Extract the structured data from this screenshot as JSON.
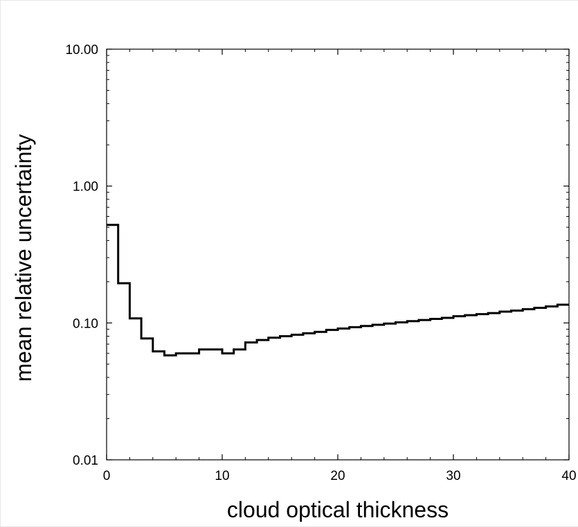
{
  "chart_data": {
    "type": "line",
    "step": true,
    "x_scale": "linear",
    "y_scale": "log",
    "xlabel": "cloud optical thickness",
    "ylabel": "mean relative uncertainty",
    "xlim": [
      0,
      40
    ],
    "ylim": [
      0.01,
      10
    ],
    "x_ticks": [
      0,
      10,
      20,
      30,
      40
    ],
    "x_tick_labels": [
      "0",
      "10",
      "20",
      "30",
      "40"
    ],
    "y_ticks": [
      0.01,
      0.1,
      1,
      10
    ],
    "y_tick_labels": [
      "0.01",
      "0.10",
      "1.00",
      "10.00"
    ],
    "grid": false,
    "legend": "none",
    "line_color": "#000000",
    "series": [
      {
        "bin_edges": [
          0,
          1,
          2,
          3,
          4,
          5,
          6,
          7,
          8,
          9,
          10,
          11,
          12,
          13,
          14,
          15,
          16,
          17,
          18,
          19,
          20,
          21,
          22,
          23,
          24,
          25,
          26,
          27,
          28,
          29,
          30,
          31,
          32,
          33,
          34,
          35,
          36,
          37,
          38,
          39,
          40
        ],
        "values": [
          0.52,
          0.195,
          0.108,
          0.077,
          0.062,
          0.058,
          0.06,
          0.06,
          0.064,
          0.064,
          0.06,
          0.064,
          0.072,
          0.075,
          0.078,
          0.08,
          0.082,
          0.084,
          0.086,
          0.089,
          0.091,
          0.093,
          0.095,
          0.097,
          0.099,
          0.101,
          0.103,
          0.105,
          0.107,
          0.109,
          0.112,
          0.114,
          0.116,
          0.118,
          0.121,
          0.123,
          0.126,
          0.129,
          0.132,
          0.136
        ]
      }
    ]
  }
}
